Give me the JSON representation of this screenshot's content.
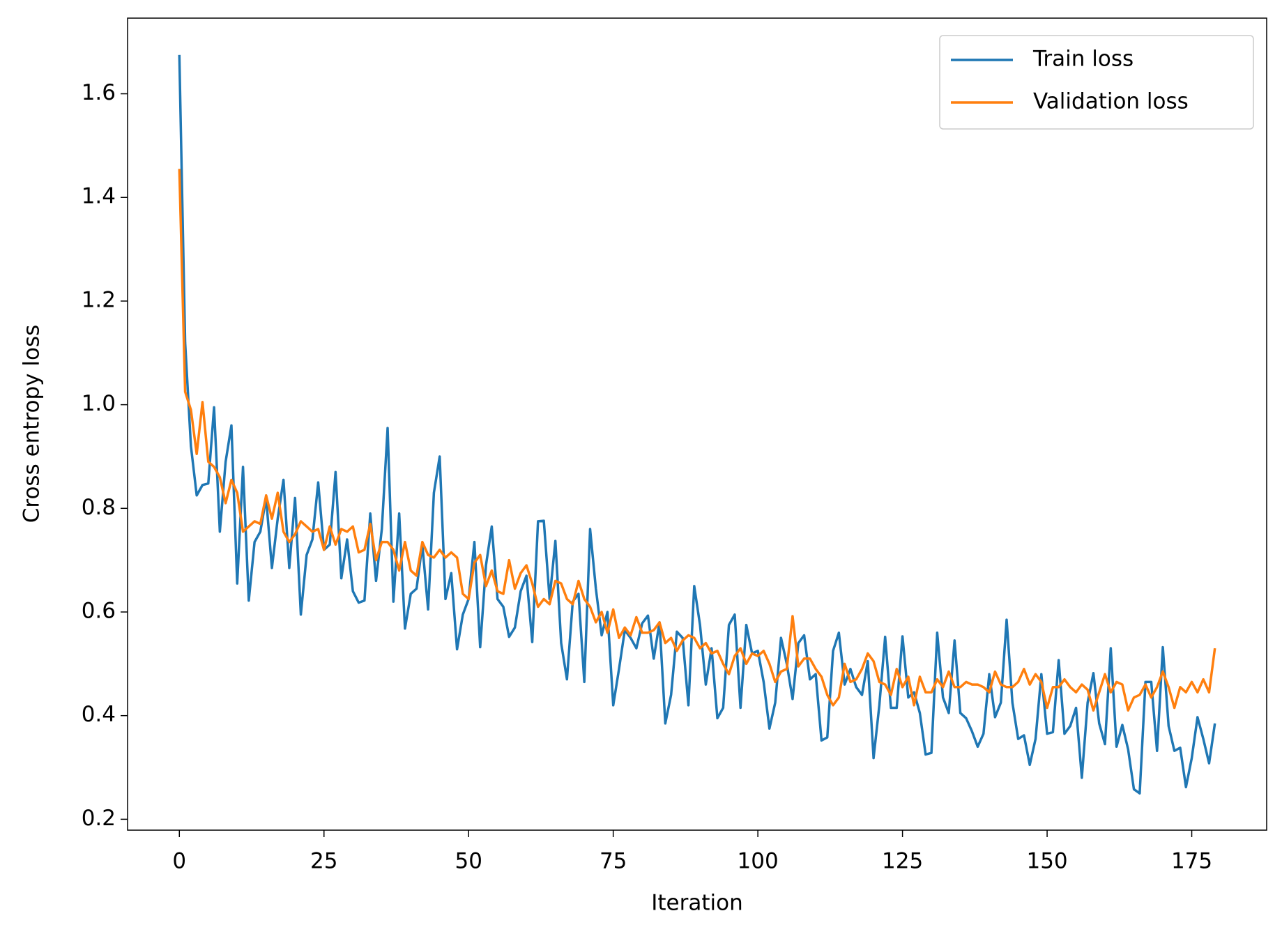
{
  "chart_data": {
    "type": "line",
    "xlabel": "Iteration",
    "ylabel": "Cross entropy loss",
    "x": [
      0,
      1,
      2,
      3,
      4,
      5,
      6,
      7,
      8,
      9,
      10,
      11,
      12,
      13,
      14,
      15,
      16,
      17,
      18,
      19,
      20,
      21,
      22,
      23,
      24,
      25,
      26,
      27,
      28,
      29,
      30,
      31,
      32,
      33,
      34,
      35,
      36,
      37,
      38,
      39,
      40,
      41,
      42,
      43,
      44,
      45,
      46,
      47,
      48,
      49,
      50,
      51,
      52,
      53,
      54,
      55,
      56,
      57,
      58,
      59,
      60,
      61,
      62,
      63,
      64,
      65,
      66,
      67,
      68,
      69,
      70,
      71,
      72,
      73,
      74,
      75,
      76,
      77,
      78,
      79,
      80,
      81,
      82,
      83,
      84,
      85,
      86,
      87,
      88,
      89,
      90,
      91,
      92,
      93,
      94,
      95,
      96,
      97,
      98,
      99,
      100,
      101,
      102,
      103,
      104,
      105,
      106,
      107,
      108,
      109,
      110,
      111,
      112,
      113,
      114,
      115,
      116,
      117,
      118,
      119,
      120,
      121,
      122,
      123,
      124,
      125,
      126,
      127,
      128,
      129,
      130,
      131,
      132,
      133,
      134,
      135,
      136,
      137,
      138,
      139,
      140,
      141,
      142,
      143,
      144,
      145,
      146,
      147,
      148,
      149,
      150,
      151,
      152,
      153,
      154,
      155,
      156,
      157,
      158,
      159,
      160,
      161,
      162,
      163,
      164,
      165,
      166,
      167,
      168,
      169,
      170,
      171,
      172,
      173,
      174,
      175,
      176,
      177,
      178,
      179
    ],
    "series": [
      {
        "name": "Train loss",
        "color": "#1f77b4",
        "values": [
          1.675,
          1.12,
          0.92,
          0.825,
          0.845,
          0.848,
          0.995,
          0.755,
          0.89,
          0.96,
          0.655,
          0.88,
          0.622,
          0.735,
          0.755,
          0.82,
          0.685,
          0.78,
          0.855,
          0.685,
          0.82,
          0.595,
          0.71,
          0.74,
          0.85,
          0.72,
          0.73,
          0.87,
          0.665,
          0.74,
          0.64,
          0.618,
          0.622,
          0.79,
          0.66,
          0.76,
          0.955,
          0.62,
          0.79,
          0.568,
          0.635,
          0.645,
          0.73,
          0.605,
          0.83,
          0.9,
          0.625,
          0.675,
          0.528,
          0.595,
          0.625,
          0.735,
          0.532,
          0.69,
          0.765,
          0.625,
          0.61,
          0.552,
          0.57,
          0.64,
          0.67,
          0.542,
          0.775,
          0.776,
          0.625,
          0.737,
          0.54,
          0.47,
          0.62,
          0.635,
          0.465,
          0.76,
          0.645,
          0.555,
          0.6,
          0.42,
          0.49,
          0.565,
          0.55,
          0.53,
          0.578,
          0.593,
          0.51,
          0.58,
          0.385,
          0.44,
          0.562,
          0.55,
          0.42,
          0.65,
          0.575,
          0.46,
          0.53,
          0.395,
          0.415,
          0.575,
          0.595,
          0.415,
          0.575,
          0.52,
          0.525,
          0.465,
          0.375,
          0.425,
          0.55,
          0.5,
          0.432,
          0.54,
          0.555,
          0.47,
          0.48,
          0.352,
          0.358,
          0.525,
          0.56,
          0.46,
          0.49,
          0.455,
          0.44,
          0.505,
          0.318,
          0.42,
          0.552,
          0.415,
          0.415,
          0.553,
          0.435,
          0.445,
          0.405,
          0.325,
          0.328,
          0.56,
          0.435,
          0.405,
          0.545,
          0.405,
          0.395,
          0.37,
          0.34,
          0.365,
          0.48,
          0.397,
          0.425,
          0.585,
          0.425,
          0.355,
          0.362,
          0.305,
          0.355,
          0.48,
          0.365,
          0.368,
          0.507,
          0.365,
          0.38,
          0.415,
          0.28,
          0.425,
          0.482,
          0.385,
          0.345,
          0.53,
          0.34,
          0.382,
          0.335,
          0.258,
          0.25,
          0.465,
          0.465,
          0.332,
          0.532,
          0.38,
          0.332,
          0.338,
          0.262,
          0.318,
          0.397,
          0.355,
          0.308,
          0.385
        ]
      },
      {
        "name": "Validation loss",
        "color": "#ff7f0e",
        "values": [
          1.455,
          1.025,
          0.99,
          0.905,
          1.005,
          0.89,
          0.88,
          0.86,
          0.81,
          0.855,
          0.83,
          0.755,
          0.765,
          0.775,
          0.77,
          0.825,
          0.78,
          0.83,
          0.755,
          0.735,
          0.75,
          0.775,
          0.765,
          0.755,
          0.76,
          0.72,
          0.765,
          0.73,
          0.76,
          0.755,
          0.765,
          0.715,
          0.72,
          0.77,
          0.7,
          0.735,
          0.735,
          0.72,
          0.68,
          0.735,
          0.68,
          0.67,
          0.735,
          0.71,
          0.705,
          0.72,
          0.705,
          0.715,
          0.705,
          0.635,
          0.625,
          0.695,
          0.71,
          0.65,
          0.68,
          0.64,
          0.635,
          0.7,
          0.645,
          0.675,
          0.69,
          0.655,
          0.61,
          0.625,
          0.615,
          0.66,
          0.655,
          0.625,
          0.615,
          0.66,
          0.625,
          0.61,
          0.58,
          0.6,
          0.56,
          0.605,
          0.55,
          0.57,
          0.555,
          0.59,
          0.56,
          0.56,
          0.565,
          0.58,
          0.54,
          0.55,
          0.525,
          0.545,
          0.555,
          0.55,
          0.53,
          0.54,
          0.52,
          0.525,
          0.5,
          0.48,
          0.515,
          0.53,
          0.5,
          0.52,
          0.515,
          0.525,
          0.5,
          0.465,
          0.485,
          0.49,
          0.592,
          0.495,
          0.51,
          0.51,
          0.49,
          0.475,
          0.44,
          0.42,
          0.435,
          0.5,
          0.465,
          0.47,
          0.49,
          0.52,
          0.505,
          0.465,
          0.46,
          0.44,
          0.49,
          0.455,
          0.475,
          0.42,
          0.475,
          0.445,
          0.445,
          0.47,
          0.455,
          0.485,
          0.455,
          0.455,
          0.465,
          0.46,
          0.46,
          0.455,
          0.445,
          0.485,
          0.46,
          0.455,
          0.455,
          0.465,
          0.49,
          0.46,
          0.48,
          0.465,
          0.415,
          0.455,
          0.455,
          0.47,
          0.455,
          0.445,
          0.46,
          0.45,
          0.41,
          0.445,
          0.48,
          0.445,
          0.465,
          0.46,
          0.41,
          0.435,
          0.44,
          0.46,
          0.435,
          0.455,
          0.485,
          0.455,
          0.415,
          0.455,
          0.445,
          0.465,
          0.445,
          0.47,
          0.445,
          0.53
        ]
      }
    ],
    "xlim": [
      -8.95,
      187.95
    ],
    "xticks": [
      0,
      25,
      50,
      75,
      100,
      125,
      150,
      175
    ],
    "ylim": [
      0.179,
      1.746
    ],
    "yticks": [
      {
        "value": 0.2,
        "label": "0.2"
      },
      {
        "value": 0.4,
        "label": "0.4"
      },
      {
        "value": 0.6,
        "label": "0.6"
      },
      {
        "value": 0.8,
        "label": "0.8"
      },
      {
        "value": 1.0,
        "label": "1.0"
      },
      {
        "value": 1.2,
        "label": "1.2"
      },
      {
        "value": 1.4,
        "label": "1.4"
      },
      {
        "value": 1.6,
        "label": "1.6"
      }
    ],
    "grid": false,
    "legend": "upper right"
  }
}
